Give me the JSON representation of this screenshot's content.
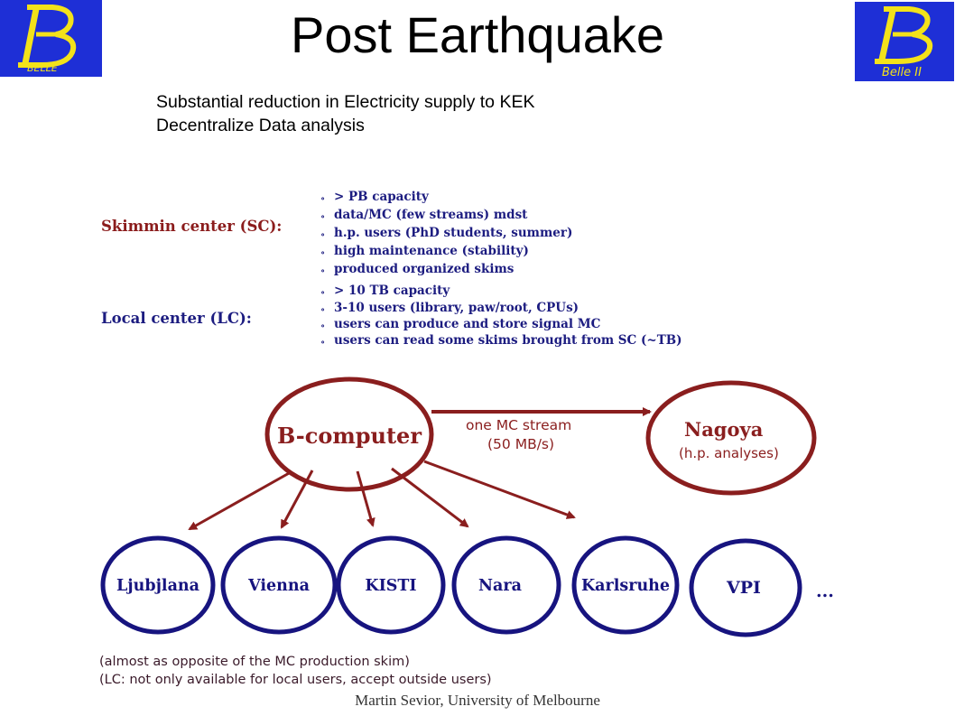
{
  "header": {
    "title": "Post Earthquake",
    "logo_left_text": "BELLE",
    "logo_right_text": "Belle II"
  },
  "bullets": [
    "Substantial reduction in Electricity supply to KEK",
    "Decentralize Data analysis"
  ],
  "skim_center": {
    "label": "Skimmin center (SC):",
    "items": [
      "> PB capacity",
      "data/MC (few streams) mdst",
      "h.p. users (PhD students, summer)",
      "high maintenance (stability)",
      "produced organized skims"
    ]
  },
  "local_center": {
    "label": "Local center (LC):",
    "items": [
      "> 10 TB capacity",
      "3-10 users (library, paw/root, CPUs)",
      "users can produce and store signal MC",
      "users can read some skims brought from SC (~TB)"
    ]
  },
  "graph": {
    "hub": "B-computer",
    "stream_label_1": "one MC stream",
    "stream_label_2": "(50 MB/s)",
    "nagoya": "Nagoya",
    "nagoya_sub": "(h.p. analyses)",
    "sites": [
      "Ljubjlana",
      "Vienna",
      "KISTI",
      "Nara",
      "Karlsruhe",
      "VPI"
    ],
    "ellipsis": "..."
  },
  "notes": [
    "(almost as opposite of the MC production skim)",
    "(LC: not only available for local users, accept outside users)"
  ],
  "footer": "Martin Sevior, University of Melbourne",
  "colors": {
    "logo_bg": "#1e2fd6",
    "logo_fg": "#f3e21a",
    "label_red": "#8b1c1c",
    "list_blue": "#1c1c80",
    "node_red": "#8a1e1e",
    "node_blue": "#17147f"
  }
}
